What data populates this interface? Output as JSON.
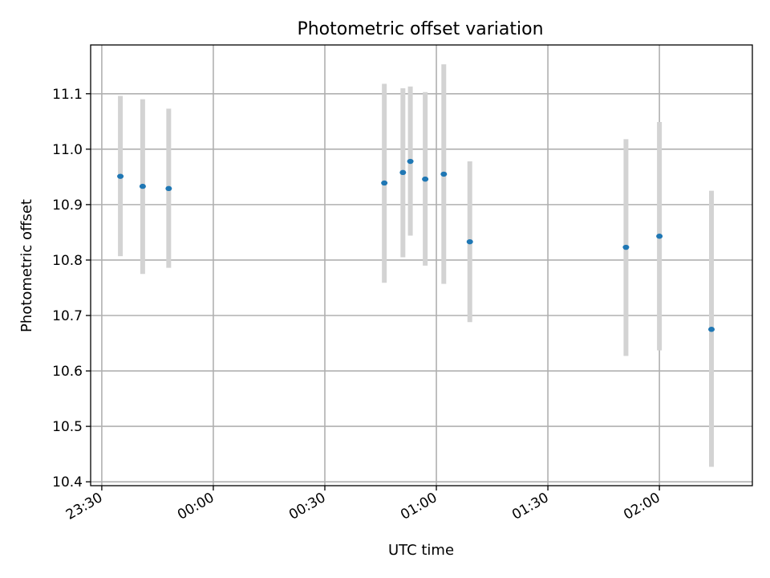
{
  "colors": {
    "point": "#1f77b4",
    "error_bar": "#d3d3d3",
    "grid": "#b0b0b0"
  },
  "chart_data": {
    "type": "scatter",
    "title": "Photometric offset variation",
    "xlabel": "UTC time",
    "ylabel": "Photometric offset",
    "x_axis_kind": "time",
    "grid": true,
    "legend": "none",
    "xlim": [
      "23:27",
      "02:25"
    ],
    "ylim": [
      10.393,
      11.188
    ],
    "x_ticks": [
      "23:30",
      "00:00",
      "00:30",
      "01:00",
      "01:30",
      "02:00"
    ],
    "y_ticks": [
      "10.4",
      "10.5",
      "10.6",
      "10.7",
      "10.8",
      "10.9",
      "11.0",
      "11.1"
    ],
    "points": [
      {
        "x": "23:35",
        "y": 10.951,
        "err_low": 10.807,
        "err_high": 11.096
      },
      {
        "x": "23:41",
        "y": 10.933,
        "err_low": 10.775,
        "err_high": 11.09
      },
      {
        "x": "23:48",
        "y": 10.929,
        "err_low": 10.786,
        "err_high": 11.073
      },
      {
        "x": "00:46",
        "y": 10.939,
        "err_low": 10.759,
        "err_high": 11.118
      },
      {
        "x": "00:51",
        "y": 10.958,
        "err_low": 10.805,
        "err_high": 11.11
      },
      {
        "x": "00:53",
        "y": 10.978,
        "err_low": 10.844,
        "err_high": 11.113
      },
      {
        "x": "00:57",
        "y": 10.946,
        "err_low": 10.79,
        "err_high": 11.103
      },
      {
        "x": "01:02",
        "y": 10.955,
        "err_low": 10.757,
        "err_high": 11.153
      },
      {
        "x": "01:09",
        "y": 10.833,
        "err_low": 10.688,
        "err_high": 10.978
      },
      {
        "x": "01:51",
        "y": 10.823,
        "err_low": 10.627,
        "err_high": 11.018
      },
      {
        "x": "02:00",
        "y": 10.843,
        "err_low": 10.637,
        "err_high": 11.049
      },
      {
        "x": "02:14",
        "y": 10.675,
        "err_low": 10.427,
        "err_high": 10.925
      }
    ]
  }
}
